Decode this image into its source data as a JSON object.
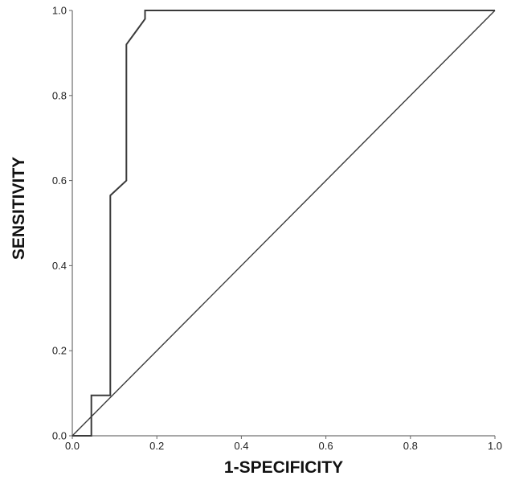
{
  "chart_data": {
    "type": "line",
    "title": "",
    "xlabel": "1-SPECIFICITY",
    "ylabel": "SENSITIVITY",
    "xlim": [
      0.0,
      1.0
    ],
    "ylim": [
      0.0,
      1.0
    ],
    "x_ticks": [
      "0.0",
      "0.2",
      "0.4",
      "0.6",
      "0.8",
      "1.0"
    ],
    "y_ticks": [
      "0.0",
      "0.2",
      "0.4",
      "0.6",
      "0.8",
      "1.0"
    ],
    "grid": false,
    "legend": "none",
    "series": [
      {
        "x": [
          0.0,
          0.045,
          0.045,
          0.09,
          0.09,
          0.128,
          0.128,
          0.15,
          0.172,
          0.172,
          1.0
        ],
        "y": [
          0.0,
          0.0,
          0.095,
          0.095,
          0.565,
          0.6,
          0.92,
          0.95,
          0.98,
          1.0,
          1.0
        ]
      },
      {
        "x": [
          0.0,
          1.0
        ],
        "y": [
          0.0,
          1.0
        ]
      }
    ]
  }
}
